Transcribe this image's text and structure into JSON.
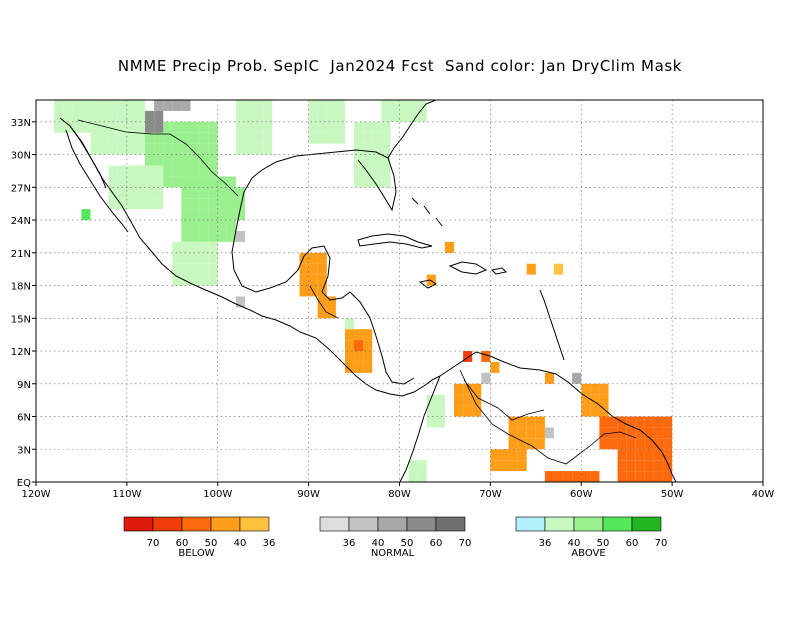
{
  "title": "NMME Precip Prob. SepIC  Jan2024 Fcst  Sand color: Jan DryClim Mask",
  "map": {
    "lon_range": [
      -120,
      -40
    ],
    "lat_range": [
      0,
      35
    ],
    "lon_ticks": [
      "120W",
      "110W",
      "100W",
      "90W",
      "80W",
      "70W",
      "60W",
      "50W",
      "40W"
    ],
    "lat_ticks": [
      "EQ",
      "3N",
      "6N",
      "9N",
      "12N",
      "15N",
      "18N",
      "21N",
      "24N",
      "27N",
      "30N",
      "33N"
    ],
    "grid": true,
    "colors": {
      "below_70": "#e11b0c",
      "below_60": "#f33c0c",
      "below_50": "#fd6a0d",
      "below_40": "#fd9d18",
      "below_36": "#fec240",
      "normal_36": "#dddddd",
      "normal_40": "#c2c2c2",
      "normal_50": "#a8a8a8",
      "normal_60": "#8a8a8a",
      "normal_70": "#707070",
      "above_36": "#b4f0fa",
      "above_40": "#c8f8c0",
      "above_50": "#9aef8e",
      "above_60": "#52e85a",
      "above_70": "#22b522"
    }
  },
  "legends": [
    {
      "caption": "BELOW",
      "labels": [
        "70",
        "60",
        "50",
        "40",
        "36"
      ],
      "colors": [
        "#e11b0c",
        "#f33c0c",
        "#fd6a0d",
        "#fd9d18",
        "#fec240"
      ]
    },
    {
      "caption": "NORMAL",
      "labels": [
        "36",
        "40",
        "50",
        "60",
        "70"
      ],
      "colors": [
        "#dddddd",
        "#c2c2c2",
        "#a8a8a8",
        "#8a8a8a",
        "#707070"
      ]
    },
    {
      "caption": "ABOVE",
      "labels": [
        "36",
        "40",
        "50",
        "60",
        "70"
      ],
      "colors": [
        "#b4f0fa",
        "#c8f8c0",
        "#9aef8e",
        "#52e85a",
        "#22b522"
      ]
    }
  ]
}
